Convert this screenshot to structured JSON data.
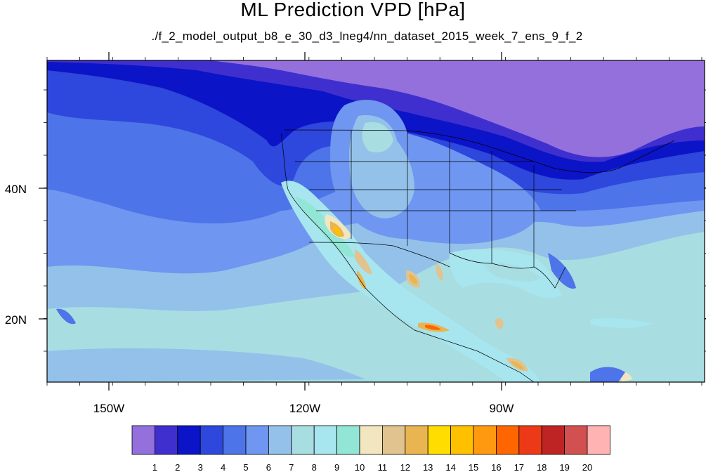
{
  "title": "ML Prediction VPD [hPa]",
  "subtitle": "./f_2_model_output_b8_e_30_d3_lneg4/nn_dataset_2015_week_7_ens_9_f_2",
  "map": {
    "lon_labels": [
      "150W",
      "120W",
      "90W"
    ],
    "lat_labels": [
      "40N",
      "20N"
    ]
  },
  "colorbar": {
    "colors": [
      "#9370db",
      "#3f2fcf",
      "#0c14c7",
      "#2e47dc",
      "#4d74e8",
      "#6f96f0",
      "#93c1ea",
      "#a8dde2",
      "#a7e5ef",
      "#91e6d6",
      "#f2e6c0",
      "#e0c38f",
      "#e8b550",
      "#ffdd00",
      "#ffc000",
      "#ff9a10",
      "#ff6600",
      "#ec3a18",
      "#bf2424",
      "#d35050",
      "#ffb3b3"
    ],
    "labels": [
      "1",
      "2",
      "3",
      "4",
      "5",
      "6",
      "7",
      "8",
      "9",
      "10",
      "11",
      "12",
      "13",
      "14",
      "15",
      "16",
      "17",
      "18",
      "19",
      "20"
    ]
  }
}
